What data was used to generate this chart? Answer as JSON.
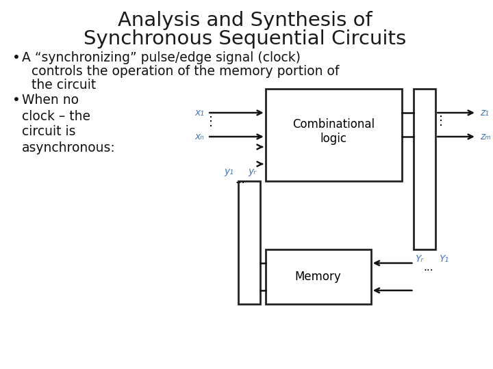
{
  "title_line1": "Analysis and Synthesis of",
  "title_line2": "Synchronous Sequential Circuits",
  "bullet1_line1": "A “synchronizing” pulse/edge signal (clock)",
  "bullet1_line2": "controls the operation of the memory portion of",
  "bullet1_line3": "the circuit",
  "bullet2_line1": "When no",
  "bullet2_line2": "clock – the",
  "bullet2_line3": "circuit is",
  "bullet2_line4": "asynchronous:",
  "bg_color": "#ffffff",
  "title_color": "#1a1a1a",
  "bullet_color": "#111111",
  "box_edge_color": "#222222",
  "arrow_color": "#111111",
  "label_color": "#4477bb",
  "comb_label": "Combinational\nlogic",
  "mem_label": "Memory",
  "x1_label": "x₁",
  "xn_label": "xₙ",
  "z1_label": "z₁",
  "zm_label": "zₘ",
  "y1_label": "y₁",
  "yr_label": "yᵣ",
  "Yr_label": "Yᵣ",
  "Y1_label": "Y₁",
  "title_fontsize": 21,
  "body_fontsize": 13.5,
  "label_fontsize": 10
}
